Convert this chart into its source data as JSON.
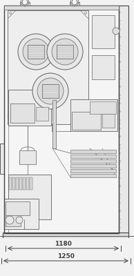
{
  "fig_width": 1.94,
  "fig_height": 4.0,
  "dpi": 100,
  "bg_color": "#f2f2f2",
  "lc": "#606060",
  "dc": "#404040",
  "fc_main": "#ebebeb",
  "fc_mid": "#e0e0e0",
  "fc_dark": "#d0d0d0",
  "dim_color": "#222222",
  "dim1_label": "1180",
  "dim2_label": "1250"
}
